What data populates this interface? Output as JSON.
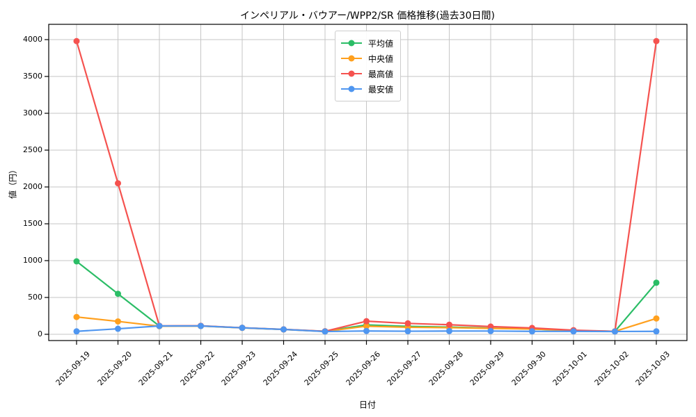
{
  "chart_data": {
    "type": "line",
    "title": "インペリアル・バウアー/WPP2/SR 価格推移(過去30日間)",
    "xlabel": "日付",
    "ylabel": "値（円）",
    "grid": true,
    "legend_position": "upper-center",
    "ylim": [
      0,
      4000
    ],
    "yticks": [
      0,
      500,
      1000,
      1500,
      2000,
      2500,
      3000,
      3500,
      4000
    ],
    "x": [
      "2025-09-19",
      "2025-09-20",
      "2025-09-21",
      "2025-09-22",
      "2025-09-23",
      "2025-09-24",
      "2025-09-25",
      "2025-09-26",
      "2025-09-27",
      "2025-09-28",
      "2025-09-29",
      "2025-09-30",
      "2025-10-01",
      "2025-10-02",
      "2025-10-03"
    ],
    "series": [
      {
        "key": "average",
        "name": "平均値",
        "color": "#2bbd66",
        "values": [
          990,
          550,
          112,
          113,
          88,
          66,
          40,
          128,
          108,
          98,
          84,
          72,
          50,
          40,
          700
        ]
      },
      {
        "key": "median",
        "name": "中央値",
        "color": "#ffa01e",
        "values": [
          235,
          175,
          110,
          112,
          87,
          65,
          39,
          110,
          95,
          90,
          80,
          72,
          50,
          40,
          215
        ]
      },
      {
        "key": "max",
        "name": "最高値",
        "color": "#f5524f",
        "values": [
          3980,
          2050,
          115,
          116,
          89,
          67,
          41,
          178,
          148,
          130,
          105,
          86,
          56,
          40,
          3980
        ]
      },
      {
        "key": "min",
        "name": "最安値",
        "color": "#4f96f0",
        "values": [
          40,
          75,
          113,
          113,
          88,
          66,
          38,
          45,
          42,
          44,
          44,
          40,
          40,
          38,
          40
        ]
      }
    ],
    "grid_color": "#c6c6c6",
    "axis_color": "#000000"
  }
}
